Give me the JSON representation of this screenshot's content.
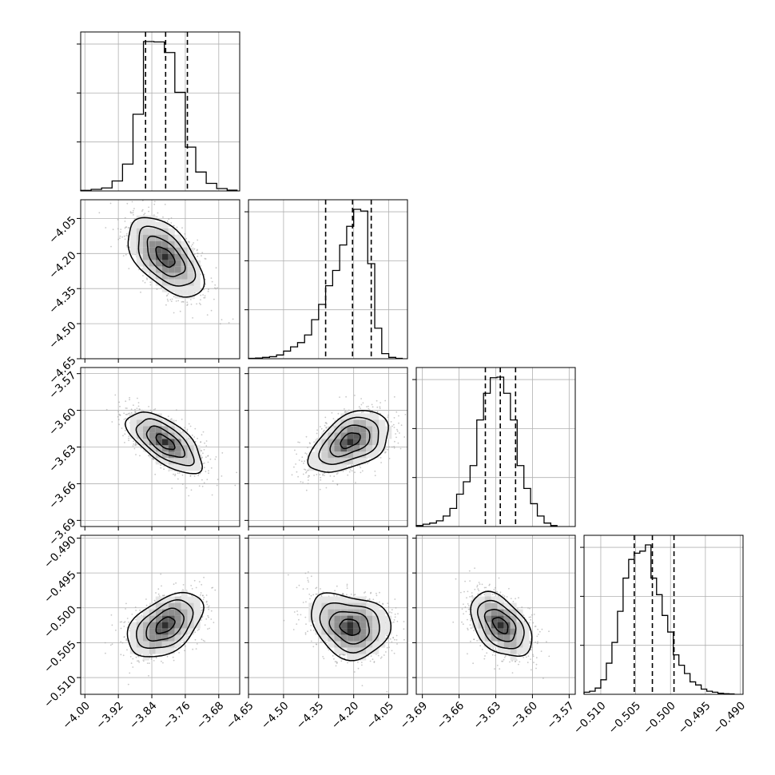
{
  "chart_data": {
    "type": "corner",
    "grid": true,
    "histogram_color": "#000000",
    "scatter_color": "#9a9a9a",
    "quantile_line_style": "dashed",
    "parameters": [
      {
        "range": [
          -4.01,
          -3.63
        ],
        "ticks": [
          -4.0,
          -3.92,
          -3.84,
          -3.76,
          -3.68
        ],
        "tick_labels": [
          "−4.00",
          "−3.92",
          "−3.84",
          "−3.76",
          "−3.68"
        ],
        "quantiles": [
          -3.855,
          -3.807,
          -3.755
        ],
        "hist_edges": [
          -4.01,
          -3.985,
          -3.96,
          -3.935,
          -3.91,
          -3.885,
          -3.86,
          -3.835,
          -3.81,
          -3.785,
          -3.76,
          -3.735,
          -3.71,
          -3.685,
          -3.66,
          -3.635
        ],
        "hist_counts": [
          3,
          8,
          15,
          50,
          135,
          385,
          750,
          748,
          695,
          495,
          220,
          95,
          38,
          12,
          4
        ]
      },
      {
        "range": [
          -4.65,
          -3.97
        ],
        "ticks": [
          -4.65,
          -4.5,
          -4.35,
          -4.2,
          -4.05
        ],
        "tick_labels": [
          "−4.65",
          "−4.50",
          "−4.35",
          "−4.20",
          "−4.05"
        ],
        "quantiles": [
          -4.32,
          -4.205,
          -4.125
        ],
        "hist_edges": [
          -4.65,
          -4.62,
          -4.59,
          -4.56,
          -4.53,
          -4.5,
          -4.47,
          -4.44,
          -4.41,
          -4.38,
          -4.35,
          -4.32,
          -4.29,
          -4.26,
          -4.23,
          -4.2,
          -4.17,
          -4.14,
          -4.11,
          -4.08,
          -4.05,
          -4.02,
          -3.99
        ],
        "hist_counts": [
          2,
          4,
          8,
          12,
          22,
          45,
          70,
          95,
          140,
          230,
          320,
          430,
          520,
          670,
          780,
          880,
          870,
          560,
          180,
          30,
          8,
          2
        ]
      },
      {
        "range": [
          -3.695,
          -3.565
        ],
        "ticks": [
          -3.69,
          -3.66,
          -3.63,
          -3.6,
          -3.57
        ],
        "tick_labels": [
          "−3.69",
          "−3.66",
          "−3.63",
          "−3.60",
          "−3.57"
        ],
        "quantiles": [
          -3.6385,
          -3.6263,
          -3.6138
        ],
        "hist_edges": [
          -3.695,
          -3.6895,
          -3.684,
          -3.6785,
          -3.673,
          -3.6675,
          -3.662,
          -3.6565,
          -3.651,
          -3.6455,
          -3.64,
          -3.6345,
          -3.629,
          -3.6235,
          -3.618,
          -3.6125,
          -3.607,
          -3.6015,
          -3.596,
          -3.5905,
          -3.585,
          -3.5795
        ],
        "hist_counts": [
          5,
          12,
          18,
          30,
          55,
          95,
          170,
          235,
          320,
          560,
          700,
          782,
          785,
          700,
          560,
          320,
          200,
          120,
          55,
          18,
          5
        ]
      },
      {
        "range": [
          -0.5124,
          -0.4896
        ],
        "ticks": [
          -0.51,
          -0.505,
          -0.5,
          -0.495,
          -0.49
        ],
        "tick_labels": [
          "−0.510",
          "−0.505",
          "−0.500",
          "−0.495",
          "−0.490"
        ],
        "quantiles": [
          -0.5052,
          -0.5026,
          -0.4995
        ],
        "hist_edges": [
          -0.5124,
          -0.5116,
          -0.5108,
          -0.51,
          -0.5092,
          -0.5084,
          -0.5076,
          -0.5068,
          -0.506,
          -0.5052,
          -0.5044,
          -0.5036,
          -0.5028,
          -0.502,
          -0.5012,
          -0.5004,
          -0.4996,
          -0.4988,
          -0.498,
          -0.4972,
          -0.4964,
          -0.4956,
          -0.4948,
          -0.494,
          -0.4932,
          -0.4924,
          -0.4916,
          -0.4908
        ],
        "hist_counts": [
          10,
          15,
          30,
          70,
          150,
          250,
          400,
          560,
          650,
          680,
          690,
          720,
          560,
          480,
          380,
          300,
          190,
          140,
          100,
          60,
          45,
          25,
          15,
          10,
          5,
          3,
          2
        ]
      }
    ],
    "pairs": [
      {
        "row": 1,
        "col": 0,
        "mean": [
          -3.808,
          -4.215
        ],
        "sd": [
          0.045,
          0.085
        ],
        "rho": -0.55,
        "trend": 0
      },
      {
        "row": 2,
        "col": 0,
        "mean": [
          -3.808,
          -3.626
        ],
        "sd": [
          0.045,
          0.0125
        ],
        "rho": -0.65,
        "trend": 0
      },
      {
        "row": 2,
        "col": 1,
        "mean": [
          -4.215,
          -3.626
        ],
        "sd": [
          0.085,
          0.0125
        ],
        "rho": 0.45,
        "trend": -0.5
      },
      {
        "row": 3,
        "col": 0,
        "mean": [
          -3.808,
          -0.5025
        ],
        "sd": [
          0.045,
          0.0023
        ],
        "rho": 0.45,
        "trend": 0
      },
      {
        "row": 3,
        "col": 1,
        "mean": [
          -4.215,
          -0.5025
        ],
        "sd": [
          0.085,
          0.0023
        ],
        "rho": -0.2,
        "trend": 0.5
      },
      {
        "row": 3,
        "col": 2,
        "mean": [
          -3.626,
          -0.5025
        ],
        "sd": [
          0.0125,
          0.0023
        ],
        "rho": -0.45,
        "trend": 0
      }
    ]
  }
}
